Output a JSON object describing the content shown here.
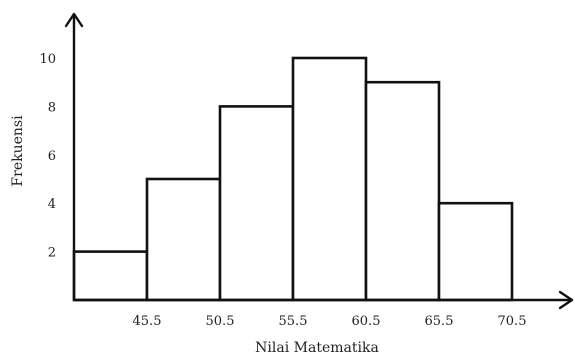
{
  "chart_data": {
    "type": "bar",
    "title": "",
    "xlabel": "Nilai Matematika",
    "ylabel": "Frekuensi",
    "x_tick_labels": [
      "45.5",
      "50.5",
      "55.5",
      "60.5",
      "65.5",
      "70.5"
    ],
    "y_tick_labels": [
      "2",
      "4",
      "6",
      "8",
      "10"
    ],
    "y_ticks": [
      2,
      4,
      6,
      8,
      10
    ],
    "bins": [
      {
        "lower": 40.5,
        "upper": 45.5,
        "value": 2
      },
      {
        "lower": 45.5,
        "upper": 50.5,
        "value": 5
      },
      {
        "lower": 50.5,
        "upper": 55.5,
        "value": 8
      },
      {
        "lower": 55.5,
        "upper": 60.5,
        "value": 10
      },
      {
        "lower": 60.5,
        "upper": 65.5,
        "value": 9
      },
      {
        "lower": 65.5,
        "upper": 70.5,
        "value": 4
      }
    ],
    "values": [
      2,
      5,
      8,
      10,
      9,
      4
    ],
    "xlim": [
      40.5,
      76.5
    ],
    "ylim": [
      0,
      12
    ],
    "grid": false,
    "legend": "none",
    "colors": {
      "bar_fill": "#ffffff",
      "bar_stroke": "#111111",
      "axis": "#111111",
      "text": "#222222"
    }
  }
}
